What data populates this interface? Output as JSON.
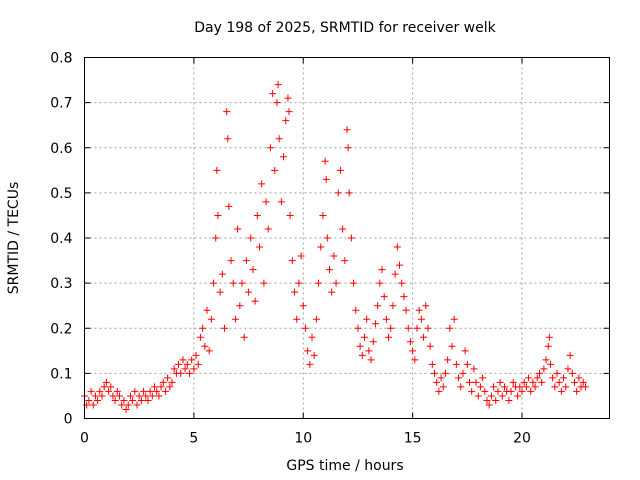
{
  "chart_data": {
    "type": "scatter",
    "title": "Day 198 of 2025, SRMTID for receiver welk",
    "xlabel": "GPS time / hours",
    "ylabel": "SRMTID / TECUs",
    "xlim": [
      0,
      24
    ],
    "ylim": [
      0,
      0.8
    ],
    "x_ticks": [
      0,
      5,
      10,
      15,
      20
    ],
    "x_tick_labels": [
      "0",
      "5",
      "10",
      "15",
      "20"
    ],
    "y_ticks": [
      0,
      0.1,
      0.2,
      0.3,
      0.4,
      0.5,
      0.6,
      0.7,
      0.8
    ],
    "y_tick_labels": [
      "0",
      "0.1",
      "0.2",
      "0.3",
      "0.4",
      "0.5",
      "0.6",
      "0.7",
      "0.8"
    ],
    "grid": true,
    "marker": "plus",
    "color": "#ff0000",
    "series": [
      {
        "name": "SRMTID",
        "points": [
          [
            0.0,
            0.05
          ],
          [
            0.1,
            0.03
          ],
          [
            0.2,
            0.04
          ],
          [
            0.3,
            0.06
          ],
          [
            0.4,
            0.03
          ],
          [
            0.5,
            0.05
          ],
          [
            0.6,
            0.04
          ],
          [
            0.7,
            0.06
          ],
          [
            0.8,
            0.05
          ],
          [
            0.9,
            0.07
          ],
          [
            1.0,
            0.08
          ],
          [
            1.1,
            0.06
          ],
          [
            1.2,
            0.07
          ],
          [
            1.3,
            0.05
          ],
          [
            1.4,
            0.04
          ],
          [
            1.5,
            0.06
          ],
          [
            1.6,
            0.05
          ],
          [
            1.7,
            0.03
          ],
          [
            1.8,
            0.04
          ],
          [
            1.9,
            0.02
          ],
          [
            2.0,
            0.03
          ],
          [
            2.1,
            0.05
          ],
          [
            2.2,
            0.04
          ],
          [
            2.3,
            0.06
          ],
          [
            2.4,
            0.03
          ],
          [
            2.5,
            0.05
          ],
          [
            2.6,
            0.04
          ],
          [
            2.7,
            0.06
          ],
          [
            2.8,
            0.05
          ],
          [
            2.9,
            0.04
          ],
          [
            3.0,
            0.06
          ],
          [
            3.1,
            0.05
          ],
          [
            3.2,
            0.07
          ],
          [
            3.3,
            0.06
          ],
          [
            3.4,
            0.05
          ],
          [
            3.5,
            0.07
          ],
          [
            3.6,
            0.08
          ],
          [
            3.7,
            0.06
          ],
          [
            3.8,
            0.09
          ],
          [
            3.9,
            0.07
          ],
          [
            4.0,
            0.08
          ],
          [
            4.1,
            0.11
          ],
          [
            4.2,
            0.1
          ],
          [
            4.3,
            0.12
          ],
          [
            4.4,
            0.1
          ],
          [
            4.5,
            0.13
          ],
          [
            4.6,
            0.11
          ],
          [
            4.7,
            0.12
          ],
          [
            4.8,
            0.1
          ],
          [
            4.9,
            0.13
          ],
          [
            5.0,
            0.11
          ],
          [
            5.1,
            0.14
          ],
          [
            5.2,
            0.12
          ],
          [
            5.3,
            0.18
          ],
          [
            5.4,
            0.2
          ],
          [
            5.5,
            0.16
          ],
          [
            5.6,
            0.24
          ],
          [
            5.7,
            0.15
          ],
          [
            5.8,
            0.22
          ],
          [
            5.9,
            0.3
          ],
          [
            6.0,
            0.4
          ],
          [
            6.05,
            0.55
          ],
          [
            6.1,
            0.45
          ],
          [
            6.2,
            0.28
          ],
          [
            6.3,
            0.32
          ],
          [
            6.4,
            0.2
          ],
          [
            6.5,
            0.68
          ],
          [
            6.55,
            0.62
          ],
          [
            6.6,
            0.47
          ],
          [
            6.7,
            0.35
          ],
          [
            6.8,
            0.3
          ],
          [
            6.9,
            0.22
          ],
          [
            7.0,
            0.42
          ],
          [
            7.1,
            0.25
          ],
          [
            7.2,
            0.3
          ],
          [
            7.3,
            0.18
          ],
          [
            7.4,
            0.35
          ],
          [
            7.5,
            0.28
          ],
          [
            7.6,
            0.4
          ],
          [
            7.7,
            0.33
          ],
          [
            7.8,
            0.26
          ],
          [
            7.9,
            0.45
          ],
          [
            8.0,
            0.38
          ],
          [
            8.1,
            0.52
          ],
          [
            8.2,
            0.3
          ],
          [
            8.3,
            0.48
          ],
          [
            8.4,
            0.42
          ],
          [
            8.5,
            0.6
          ],
          [
            8.6,
            0.72
          ],
          [
            8.7,
            0.55
          ],
          [
            8.8,
            0.7
          ],
          [
            8.85,
            0.74
          ],
          [
            8.9,
            0.62
          ],
          [
            9.0,
            0.48
          ],
          [
            9.1,
            0.58
          ],
          [
            9.2,
            0.66
          ],
          [
            9.3,
            0.71
          ],
          [
            9.35,
            0.68
          ],
          [
            9.4,
            0.45
          ],
          [
            9.5,
            0.35
          ],
          [
            9.6,
            0.28
          ],
          [
            9.7,
            0.22
          ],
          [
            9.8,
            0.3
          ],
          [
            9.9,
            0.36
          ],
          [
            10.0,
            0.25
          ],
          [
            10.1,
            0.2
          ],
          [
            10.2,
            0.15
          ],
          [
            10.3,
            0.12
          ],
          [
            10.4,
            0.18
          ],
          [
            10.5,
            0.14
          ],
          [
            10.6,
            0.22
          ],
          [
            10.7,
            0.3
          ],
          [
            10.8,
            0.38
          ],
          [
            10.9,
            0.45
          ],
          [
            11.0,
            0.57
          ],
          [
            11.05,
            0.53
          ],
          [
            11.1,
            0.4
          ],
          [
            11.2,
            0.33
          ],
          [
            11.3,
            0.28
          ],
          [
            11.4,
            0.36
          ],
          [
            11.5,
            0.3
          ],
          [
            11.6,
            0.5
          ],
          [
            11.7,
            0.55
          ],
          [
            11.8,
            0.42
          ],
          [
            11.9,
            0.35
          ],
          [
            12.0,
            0.64
          ],
          [
            12.05,
            0.6
          ],
          [
            12.1,
            0.5
          ],
          [
            12.2,
            0.4
          ],
          [
            12.3,
            0.3
          ],
          [
            12.4,
            0.24
          ],
          [
            12.5,
            0.2
          ],
          [
            12.6,
            0.16
          ],
          [
            12.7,
            0.14
          ],
          [
            12.8,
            0.18
          ],
          [
            12.9,
            0.22
          ],
          [
            13.0,
            0.15
          ],
          [
            13.1,
            0.13
          ],
          [
            13.2,
            0.17
          ],
          [
            13.3,
            0.21
          ],
          [
            13.4,
            0.25
          ],
          [
            13.5,
            0.3
          ],
          [
            13.6,
            0.33
          ],
          [
            13.7,
            0.27
          ],
          [
            13.8,
            0.22
          ],
          [
            13.9,
            0.18
          ],
          [
            14.0,
            0.2
          ],
          [
            14.1,
            0.25
          ],
          [
            14.2,
            0.32
          ],
          [
            14.3,
            0.38
          ],
          [
            14.4,
            0.34
          ],
          [
            14.5,
            0.3
          ],
          [
            14.6,
            0.27
          ],
          [
            14.7,
            0.24
          ],
          [
            14.8,
            0.2
          ],
          [
            14.9,
            0.17
          ],
          [
            15.0,
            0.15
          ],
          [
            15.1,
            0.13
          ],
          [
            15.2,
            0.2
          ],
          [
            15.3,
            0.24
          ],
          [
            15.4,
            0.22
          ],
          [
            15.5,
            0.18
          ],
          [
            15.6,
            0.25
          ],
          [
            15.7,
            0.2
          ],
          [
            15.8,
            0.16
          ],
          [
            15.9,
            0.12
          ],
          [
            16.0,
            0.1
          ],
          [
            16.1,
            0.08
          ],
          [
            16.2,
            0.06
          ],
          [
            16.3,
            0.09
          ],
          [
            16.4,
            0.07
          ],
          [
            16.5,
            0.1
          ],
          [
            16.6,
            0.13
          ],
          [
            16.7,
            0.2
          ],
          [
            16.8,
            0.16
          ],
          [
            16.9,
            0.22
          ],
          [
            17.0,
            0.12
          ],
          [
            17.1,
            0.09
          ],
          [
            17.2,
            0.07
          ],
          [
            17.3,
            0.1
          ],
          [
            17.4,
            0.15
          ],
          [
            17.5,
            0.12
          ],
          [
            17.6,
            0.08
          ],
          [
            17.7,
            0.06
          ],
          [
            17.8,
            0.11
          ],
          [
            17.9,
            0.08
          ],
          [
            18.0,
            0.05
          ],
          [
            18.1,
            0.07
          ],
          [
            18.2,
            0.09
          ],
          [
            18.3,
            0.06
          ],
          [
            18.4,
            0.04
          ],
          [
            18.5,
            0.03
          ],
          [
            18.6,
            0.05
          ],
          [
            18.7,
            0.07
          ],
          [
            18.8,
            0.04
          ],
          [
            18.9,
            0.06
          ],
          [
            19.0,
            0.08
          ],
          [
            19.1,
            0.05
          ],
          [
            19.2,
            0.07
          ],
          [
            19.3,
            0.06
          ],
          [
            19.4,
            0.04
          ],
          [
            19.5,
            0.06
          ],
          [
            19.6,
            0.08
          ],
          [
            19.7,
            0.07
          ],
          [
            19.8,
            0.05
          ],
          [
            19.9,
            0.07
          ],
          [
            20.0,
            0.06
          ],
          [
            20.1,
            0.08
          ],
          [
            20.2,
            0.07
          ],
          [
            20.3,
            0.09
          ],
          [
            20.4,
            0.06
          ],
          [
            20.5,
            0.08
          ],
          [
            20.6,
            0.07
          ],
          [
            20.7,
            0.09
          ],
          [
            20.8,
            0.1
          ],
          [
            20.9,
            0.08
          ],
          [
            21.0,
            0.11
          ],
          [
            21.1,
            0.13
          ],
          [
            21.2,
            0.16
          ],
          [
            21.25,
            0.18
          ],
          [
            21.3,
            0.12
          ],
          [
            21.4,
            0.09
          ],
          [
            21.5,
            0.07
          ],
          [
            21.6,
            0.1
          ],
          [
            21.7,
            0.08
          ],
          [
            21.8,
            0.06
          ],
          [
            21.9,
            0.09
          ],
          [
            22.0,
            0.07
          ],
          [
            22.1,
            0.11
          ],
          [
            22.2,
            0.14
          ],
          [
            22.3,
            0.1
          ],
          [
            22.4,
            0.08
          ],
          [
            22.5,
            0.06
          ],
          [
            22.6,
            0.09
          ],
          [
            22.7,
            0.07
          ],
          [
            22.8,
            0.08
          ],
          [
            22.9,
            0.07
          ]
        ]
      }
    ]
  }
}
